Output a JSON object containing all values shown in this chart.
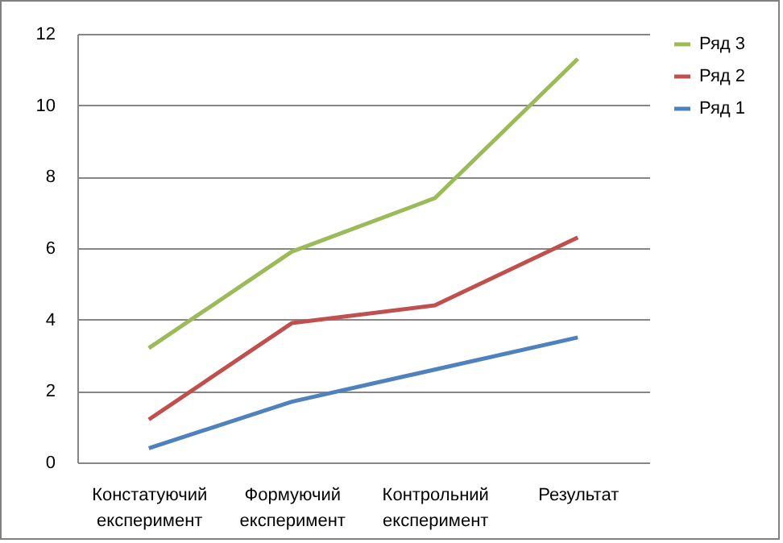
{
  "chart_data": {
    "type": "line",
    "categories": [
      "Констатуючий експеримент",
      "Формуючий експеримент",
      "Контрольний експеримент",
      "Результат"
    ],
    "series": [
      {
        "name": "Ряд 3",
        "color": "#9bbb59",
        "values": [
          3.2,
          5.9,
          7.4,
          11.3
        ]
      },
      {
        "name": "Ряд 2",
        "color": "#c0504d",
        "values": [
          1.2,
          3.9,
          4.4,
          6.3
        ]
      },
      {
        "name": "Ряд 1",
        "color": "#4f81bd",
        "values": [
          0.4,
          1.7,
          2.6,
          3.5
        ]
      }
    ],
    "ylim": [
      0,
      12
    ],
    "yticks": [
      0,
      2,
      4,
      6,
      8,
      10,
      12
    ],
    "grid": "y",
    "legend": "right",
    "marker": "none",
    "line_style": "solid"
  }
}
